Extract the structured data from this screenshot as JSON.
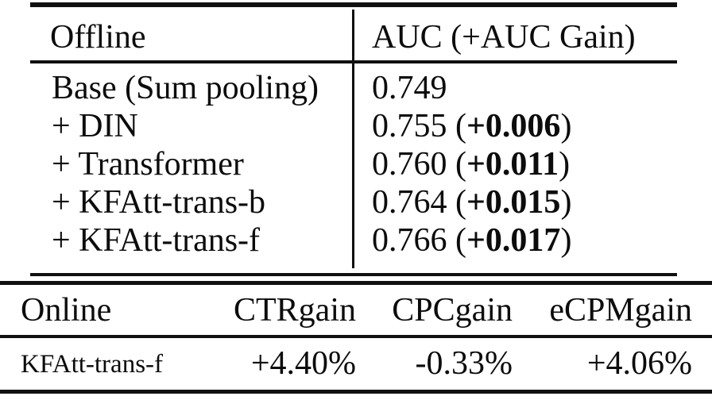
{
  "offline_table": {
    "header": {
      "col1": "Offline",
      "col2": "AUC (+AUC Gain)"
    },
    "rows": [
      {
        "model": "Base (Sum pooling)",
        "auc": "0.749",
        "gain_prefix": "",
        "gain": "",
        "gain_suffix": ""
      },
      {
        "model": "+ DIN",
        "auc": "0.755",
        "gain_prefix": " (",
        "gain": "+0.006",
        "gain_suffix": ")"
      },
      {
        "model": "+ Transformer",
        "auc": "0.760",
        "gain_prefix": " (",
        "gain": "+0.011",
        "gain_suffix": ")"
      },
      {
        "model": "+ KFAtt-trans-b",
        "auc": "0.764",
        "gain_prefix": " (",
        "gain": "+0.015",
        "gain_suffix": ")"
      },
      {
        "model": "+ KFAtt-trans-f",
        "auc": "0.766",
        "gain_prefix": " (",
        "gain": "+0.017",
        "gain_suffix": ")"
      }
    ]
  },
  "online_table": {
    "header": {
      "col1": "Online",
      "col2": "CTRgain",
      "col3": "CPCgain",
      "col4": "eCPMgain"
    },
    "rows": [
      {
        "model": "KFAtt-trans-f",
        "ctr_gain": "+4.40%",
        "cpc_gain": "-0.33%",
        "ecpm_gain": "+4.06%"
      }
    ]
  },
  "colors": {
    "text": "#0c0c0c",
    "rule": "#101010",
    "background": "#ffffff"
  }
}
